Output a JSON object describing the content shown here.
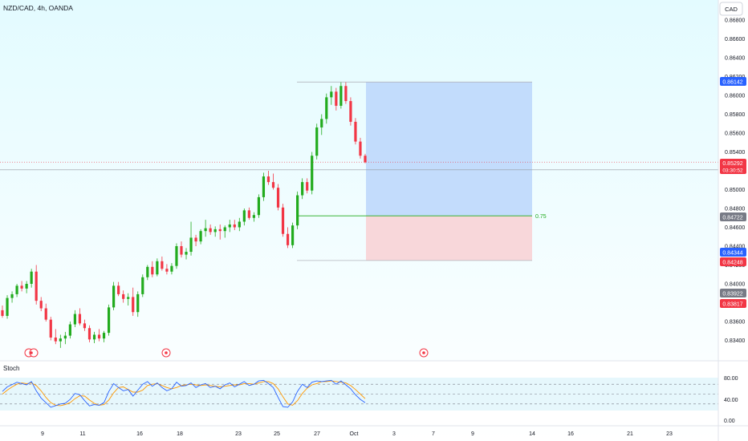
{
  "header": {
    "symbol_label": "NZD/CAD, 4h, OANDA"
  },
  "currency_button": {
    "label": "CAD"
  },
  "stoch": {
    "label": "Stoch",
    "levels": [
      "80.00",
      "40.00",
      "0.00"
    ]
  },
  "price_axis": {
    "ticks": [
      "0.86800",
      "0.86600",
      "0.86400",
      "0.86200",
      "0.86000",
      "0.85800",
      "0.85600",
      "0.85400",
      "0.85000",
      "0.84800",
      "0.84600",
      "0.84400",
      "0.84200",
      "0.84000",
      "0.83600",
      "0.83400"
    ]
  },
  "price_tags": {
    "target": {
      "value": "0.86142",
      "color": "#2962ff"
    },
    "last": {
      "value": "0.85292",
      "countdown": "03:30:52",
      "color": "#f23645"
    },
    "level_075": {
      "value": "0.84722",
      "color": "#787b86"
    },
    "entry": {
      "value": "0.84344",
      "color": "#2962ff"
    },
    "stop": {
      "value": "0.84248",
      "color": "#f23645"
    },
    "gray_low": {
      "value": "0.83922",
      "color": "#787b86"
    },
    "red_low": {
      "value": "0.83817",
      "color": "#f23645"
    }
  },
  "fib_label": "0.75",
  "time_axis": {
    "labels": [
      "9",
      "11",
      "16",
      "18",
      "23",
      "25",
      "27",
      "Oct",
      "3",
      "7",
      "9",
      "14",
      "16",
      "21",
      "23"
    ]
  },
  "icons": [
    "event-marker-icon",
    "event-marker-icon",
    "event-marker-icon"
  ],
  "colors": {
    "up": "#089981",
    "up_bright": "#22ab1e",
    "down": "#f23645",
    "profit_zone": "#bbd6fb",
    "loss_zone": "#f8d3d6",
    "background_tint": "#e6fbff"
  },
  "chart_data": {
    "type": "candlestick",
    "title": "NZD/CAD, 4h, OANDA",
    "y_range": [
      0.833,
      0.869
    ],
    "candles": [
      [
        0.8372,
        0.8377,
        0.8364,
        0.8366
      ],
      [
        0.8366,
        0.8388,
        0.8363,
        0.8385
      ],
      [
        0.8385,
        0.8392,
        0.838,
        0.8389
      ],
      [
        0.8389,
        0.84,
        0.8386,
        0.8398
      ],
      [
        0.8398,
        0.8403,
        0.8392,
        0.8395
      ],
      [
        0.8395,
        0.8403,
        0.839,
        0.84
      ],
      [
        0.84,
        0.8416,
        0.8396,
        0.8413
      ],
      [
        0.8413,
        0.842,
        0.8378,
        0.8382
      ],
      [
        0.8382,
        0.8386,
        0.8371,
        0.8374
      ],
      [
        0.8374,
        0.8379,
        0.836,
        0.8362
      ],
      [
        0.8362,
        0.8365,
        0.834,
        0.8343
      ],
      [
        0.8343,
        0.8352,
        0.8336,
        0.8339
      ],
      [
        0.8339,
        0.8346,
        0.8332,
        0.8342
      ],
      [
        0.8342,
        0.8349,
        0.8336,
        0.8345
      ],
      [
        0.8345,
        0.836,
        0.8342,
        0.8357
      ],
      [
        0.8357,
        0.8372,
        0.8354,
        0.8368
      ],
      [
        0.8368,
        0.8374,
        0.8356,
        0.8358
      ],
      [
        0.8358,
        0.8362,
        0.835,
        0.8353
      ],
      [
        0.8353,
        0.8356,
        0.8338,
        0.8341
      ],
      [
        0.8341,
        0.8349,
        0.8337,
        0.8346
      ],
      [
        0.8346,
        0.8352,
        0.8339,
        0.8342
      ],
      [
        0.8342,
        0.835,
        0.8338,
        0.8348
      ],
      [
        0.8348,
        0.8378,
        0.8345,
        0.8375
      ],
      [
        0.8375,
        0.8402,
        0.8372,
        0.8398
      ],
      [
        0.8398,
        0.8402,
        0.8387,
        0.8389
      ],
      [
        0.8389,
        0.8393,
        0.838,
        0.8384
      ],
      [
        0.8384,
        0.839,
        0.8377,
        0.8386
      ],
      [
        0.8386,
        0.8396,
        0.8366,
        0.837
      ],
      [
        0.837,
        0.8392,
        0.8365,
        0.8389
      ],
      [
        0.8389,
        0.841,
        0.8386,
        0.8407
      ],
      [
        0.8407,
        0.842,
        0.8404,
        0.8418
      ],
      [
        0.8418,
        0.8424,
        0.8407,
        0.841
      ],
      [
        0.841,
        0.8427,
        0.8408,
        0.8424
      ],
      [
        0.8424,
        0.8429,
        0.8414,
        0.8416
      ],
      [
        0.8416,
        0.8421,
        0.841,
        0.8413
      ],
      [
        0.8413,
        0.8422,
        0.841,
        0.8419
      ],
      [
        0.8419,
        0.8443,
        0.8416,
        0.844
      ],
      [
        0.844,
        0.8445,
        0.8428,
        0.8431
      ],
      [
        0.8431,
        0.8438,
        0.8426,
        0.8434
      ],
      [
        0.8434,
        0.8466,
        0.843,
        0.8449
      ],
      [
        0.8449,
        0.8452,
        0.844,
        0.8445
      ],
      [
        0.8445,
        0.8458,
        0.8442,
        0.8456
      ],
      [
        0.8456,
        0.8468,
        0.845,
        0.8459
      ],
      [
        0.8459,
        0.8463,
        0.8452,
        0.8455
      ],
      [
        0.8455,
        0.8461,
        0.845,
        0.8458
      ],
      [
        0.8458,
        0.8463,
        0.8447,
        0.8456
      ],
      [
        0.8456,
        0.8462,
        0.8449,
        0.846
      ],
      [
        0.846,
        0.8468,
        0.8455,
        0.8463
      ],
      [
        0.8463,
        0.8468,
        0.8457,
        0.846
      ],
      [
        0.846,
        0.847,
        0.8456,
        0.8466
      ],
      [
        0.8466,
        0.848,
        0.8462,
        0.8478
      ],
      [
        0.8478,
        0.8481,
        0.8468,
        0.847
      ],
      [
        0.847,
        0.8476,
        0.8466,
        0.8473
      ],
      [
        0.8473,
        0.8495,
        0.847,
        0.8492
      ],
      [
        0.8492,
        0.8518,
        0.8488,
        0.8514
      ],
      [
        0.8514,
        0.852,
        0.8505,
        0.8508
      ],
      [
        0.8508,
        0.8517,
        0.85,
        0.8502
      ],
      [
        0.8502,
        0.8506,
        0.8478,
        0.8481
      ],
      [
        0.8481,
        0.8485,
        0.845,
        0.8453
      ],
      [
        0.8453,
        0.846,
        0.8438,
        0.8441
      ],
      [
        0.8441,
        0.8465,
        0.8438,
        0.8462
      ],
      [
        0.8462,
        0.8498,
        0.8458,
        0.8494
      ],
      [
        0.8494,
        0.8512,
        0.849,
        0.8508
      ],
      [
        0.8508,
        0.8512,
        0.8496,
        0.8499
      ],
      [
        0.8499,
        0.854,
        0.8495,
        0.8536
      ],
      [
        0.8536,
        0.857,
        0.8532,
        0.8566
      ],
      [
        0.8566,
        0.858,
        0.8558,
        0.8575
      ],
      [
        0.8575,
        0.8602,
        0.857,
        0.8598
      ],
      [
        0.8598,
        0.861,
        0.859,
        0.8604
      ],
      [
        0.8604,
        0.8608,
        0.8584,
        0.8589
      ],
      [
        0.8589,
        0.8614,
        0.8586,
        0.861
      ],
      [
        0.861,
        0.8614,
        0.8591,
        0.8594
      ],
      [
        0.8594,
        0.8598,
        0.8568,
        0.8572
      ],
      [
        0.8572,
        0.8576,
        0.8548,
        0.8551
      ],
      [
        0.8551,
        0.8555,
        0.8533,
        0.8536
      ],
      [
        0.8536,
        0.8538,
        0.8528,
        0.8529
      ]
    ],
    "positions": {
      "short_target": 0.86142,
      "level_075": 0.84722,
      "entry": 0.84344,
      "stop": 0.84248
    },
    "stochastic": {
      "range": [
        0,
        100
      ],
      "levels": [
        80,
        50,
        20
      ],
      "k": [
        58,
        72,
        79,
        86,
        82,
        78,
        88,
        60,
        38,
        24,
        10,
        15,
        20,
        22,
        34,
        52,
        48,
        30,
        14,
        18,
        16,
        24,
        58,
        82,
        70,
        60,
        64,
        44,
        62,
        80,
        88,
        74,
        84,
        70,
        60,
        66,
        86,
        74,
        76,
        84,
        70,
        78,
        82,
        70,
        74,
        66,
        78,
        84,
        72,
        80,
        88,
        76,
        80,
        90,
        92,
        82,
        70,
        40,
        12,
        10,
        26,
        58,
        80,
        70,
        86,
        90,
        88,
        90,
        92,
        80,
        90,
        78,
        66,
        48,
        34,
        24
      ],
      "d": [
        50,
        62,
        72,
        80,
        84,
        82,
        84,
        76,
        60,
        40,
        24,
        16,
        15,
        18,
        24,
        36,
        45,
        44,
        32,
        22,
        16,
        18,
        32,
        54,
        70,
        72,
        64,
        56,
        56,
        62,
        76,
        80,
        82,
        76,
        70,
        66,
        70,
        76,
        78,
        80,
        78,
        76,
        78,
        76,
        74,
        72,
        74,
        76,
        78,
        78,
        82,
        82,
        80,
        84,
        88,
        88,
        82,
        66,
        42,
        20,
        16,
        30,
        52,
        68,
        78,
        82,
        88,
        88,
        90,
        88,
        86,
        84,
        76,
        64,
        50,
        36
      ]
    }
  }
}
